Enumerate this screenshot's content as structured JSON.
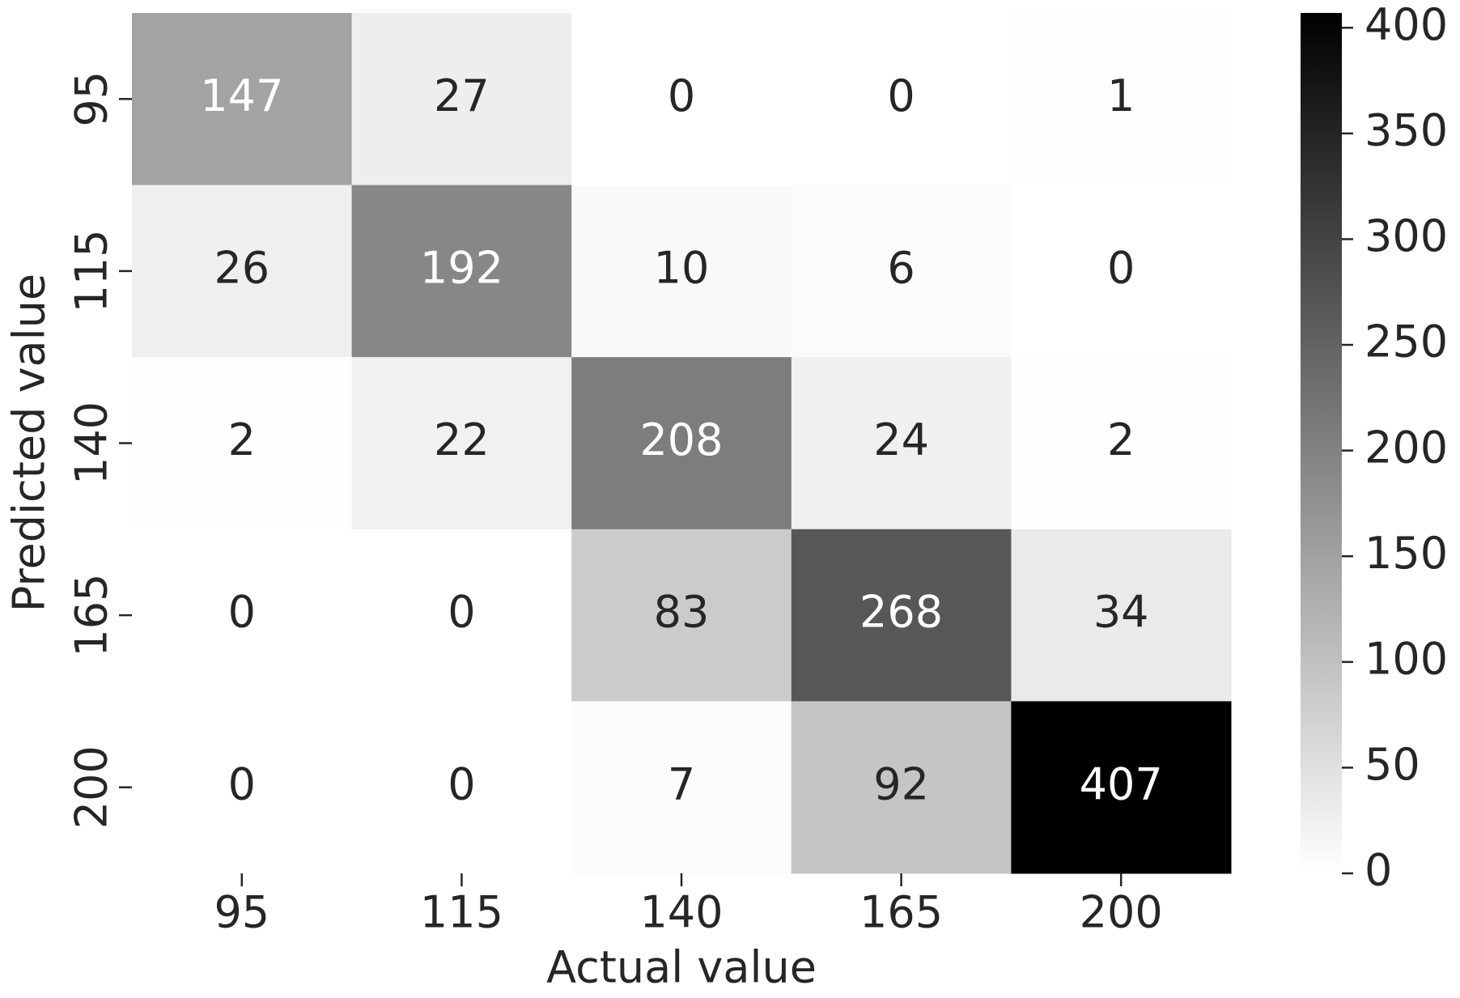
{
  "chart_data": {
    "type": "heatmap",
    "x_label": "Actual value",
    "y_label": "Predicted value",
    "x_categories": [
      "95",
      "115",
      "140",
      "165",
      "200"
    ],
    "y_categories": [
      "95",
      "115",
      "140",
      "165",
      "200"
    ],
    "values": [
      [
        147,
        27,
        0,
        0,
        1
      ],
      [
        26,
        192,
        10,
        6,
        0
      ],
      [
        2,
        22,
        208,
        24,
        2
      ],
      [
        0,
        0,
        83,
        268,
        34
      ],
      [
        0,
        0,
        7,
        92,
        407
      ]
    ],
    "cmap": [
      "#ffffff",
      "#000000"
    ],
    "clim": [
      0,
      407
    ],
    "cticks": [
      0,
      50,
      100,
      150,
      200,
      250,
      300,
      350,
      400
    ]
  }
}
